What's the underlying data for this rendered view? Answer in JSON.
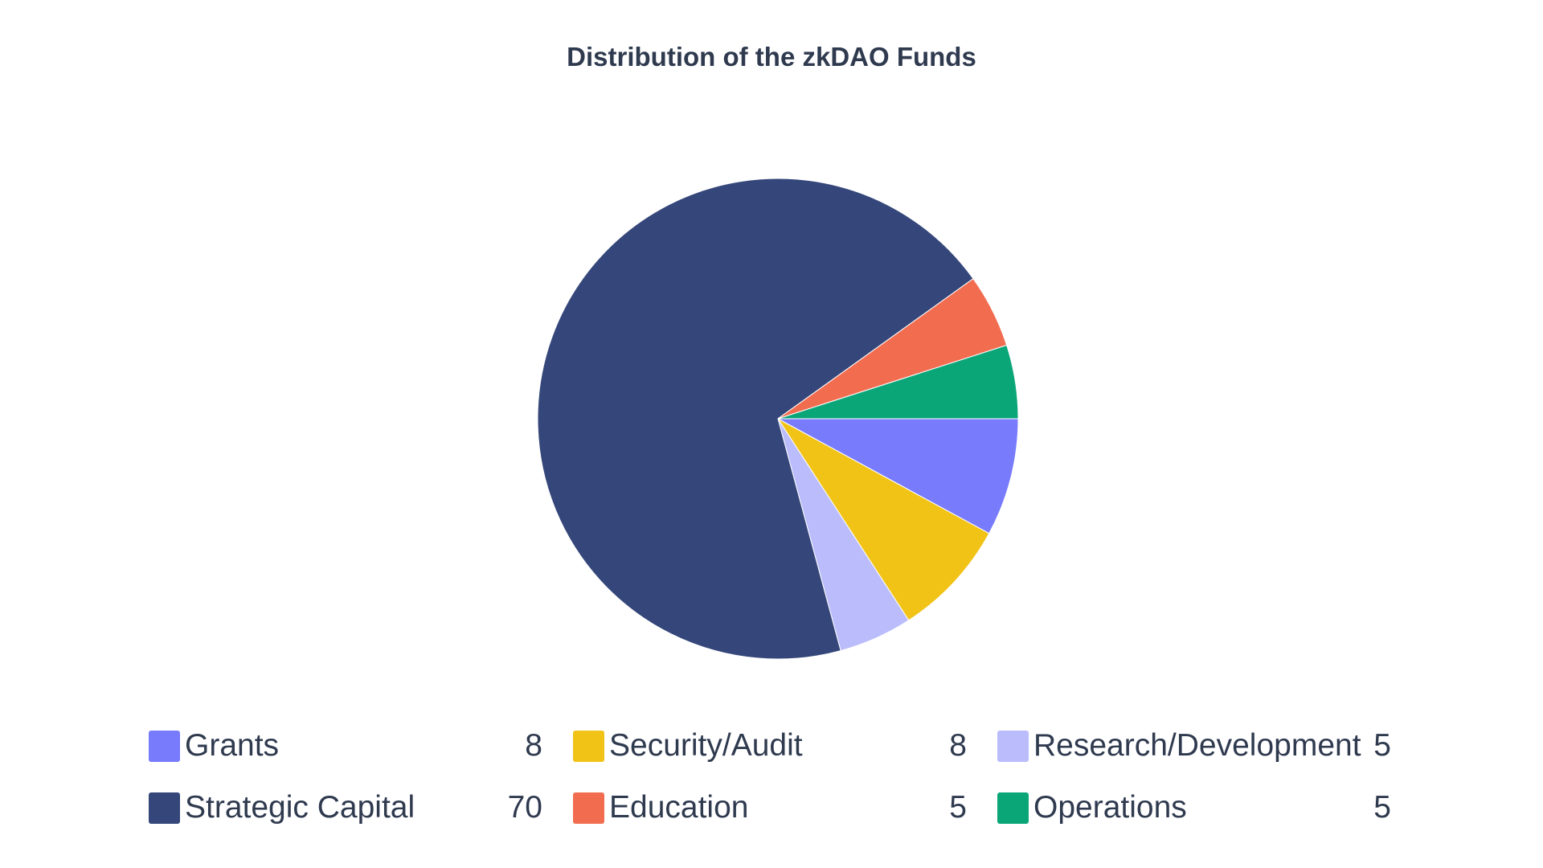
{
  "chart_data": {
    "type": "pie",
    "title": "Distribution of the zkDAO Funds",
    "slices": [
      {
        "label": "Grants",
        "value": 8,
        "color": "#787cfc"
      },
      {
        "label": "Security/Audit",
        "value": 8,
        "color": "#f1c317"
      },
      {
        "label": "Research/Development",
        "value": 5,
        "color": "#babcfc"
      },
      {
        "label": "Strategic Capital",
        "value": 70,
        "color": "#35477a"
      },
      {
        "label": "Education",
        "value": 5,
        "color": "#f26c50"
      },
      {
        "label": "Operations",
        "value": 5,
        "color": "#0ba678"
      }
    ],
    "start_angle_deg": 0,
    "direction": "clockwise",
    "legend_position": "bottom"
  }
}
